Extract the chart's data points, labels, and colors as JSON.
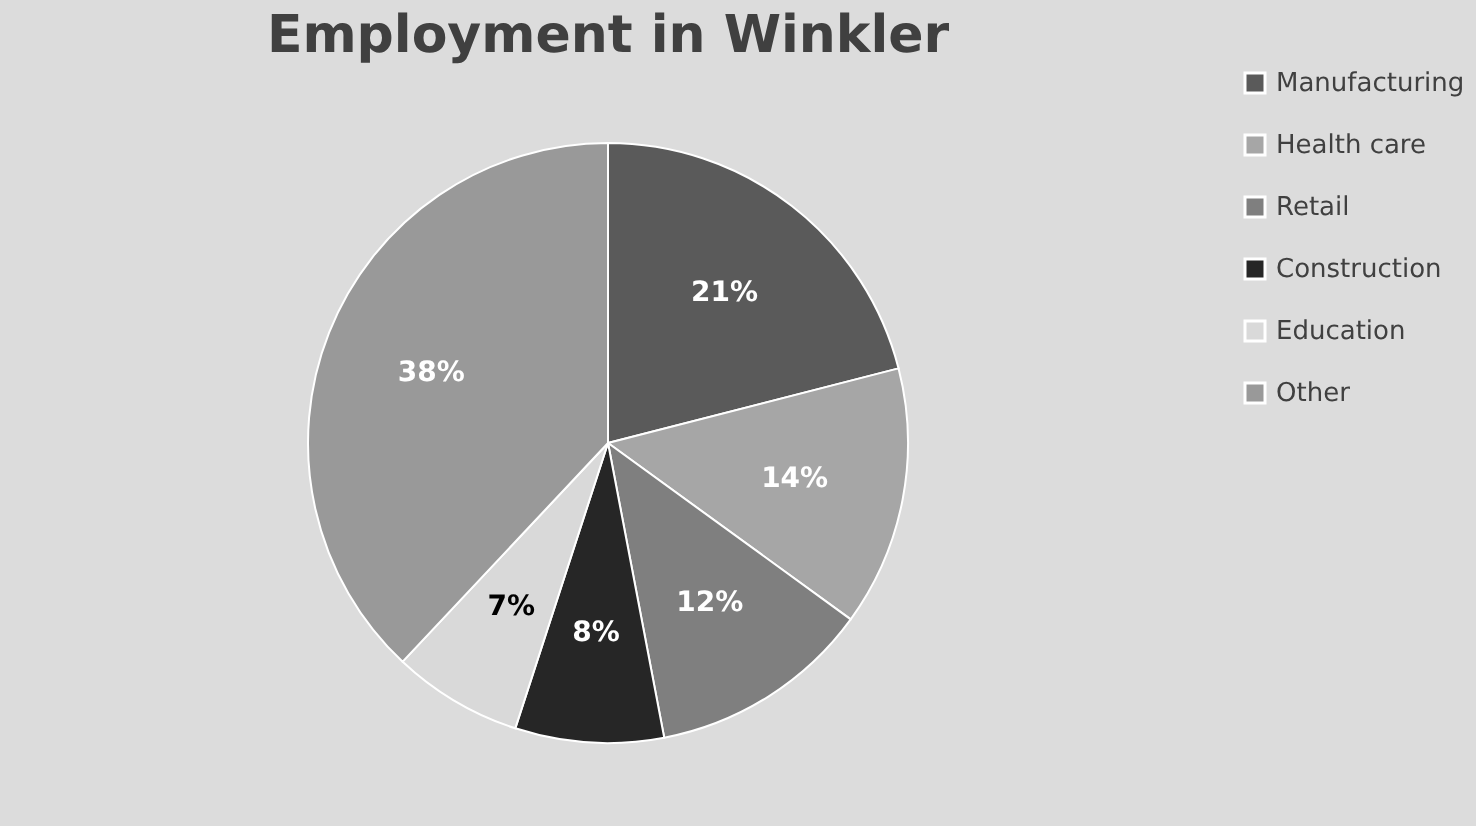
{
  "chart_data": {
    "type": "pie",
    "title": "Employment in Winkler",
    "categories": [
      "Manufacturing",
      "Health care",
      "Retail",
      "Construction",
      "Education",
      "Other"
    ],
    "values": [
      21,
      14,
      12,
      8,
      7,
      38
    ],
    "colors": [
      "#5a5a5a",
      "#a6a6a6",
      "#7f7f7f",
      "#262626",
      "#d9d9d9",
      "#999999"
    ],
    "value_labels": [
      "21%",
      "14%",
      "12%",
      "8%",
      "7%",
      "38%"
    ],
    "legend": "right"
  }
}
